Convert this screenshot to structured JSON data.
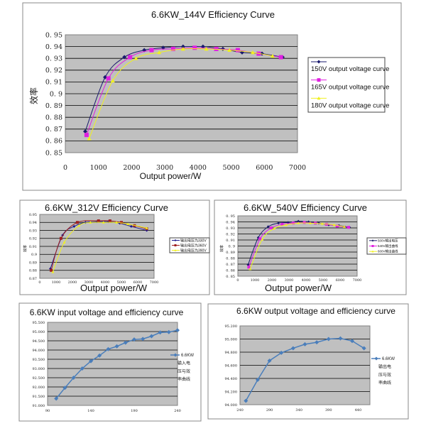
{
  "chart_data": [
    {
      "type": "line",
      "title": "6.6KW_144V Efficiency Curve",
      "xlabel": "Output power/W",
      "ylabel": "效率",
      "xlim": [
        0,
        7000
      ],
      "ylim": [
        0.85,
        0.95
      ],
      "xticks": [
        "0",
        "1000",
        "2000",
        "3000",
        "4000",
        "5000",
        "6000",
        "7000"
      ],
      "yticks": [
        "0. 85",
        "0. 86",
        "0. 87",
        "0. 88",
        "0. 89",
        "0. 9",
        "0. 91",
        "0. 92",
        "0. 93",
        "0. 94",
        "0. 95"
      ],
      "grid": true,
      "legend": "right",
      "series": [
        {
          "name": "150V output voltage curve",
          "color": "#1a1a6e",
          "marker": "diamond",
          "x": [
            600,
            1200,
            1780,
            2380,
            2950,
            3550,
            4150,
            4750,
            5330,
            5930,
            6550
          ],
          "y": [
            0.868,
            0.914,
            0.931,
            0.937,
            0.939,
            0.94,
            0.94,
            0.938,
            0.935,
            0.934,
            0.931
          ]
        },
        {
          "name": "165V output voltage curve",
          "color": "#e020e0",
          "marker": "square",
          "x": [
            640,
            1300,
            1950,
            2600,
            3250,
            3900,
            4550,
            5200,
            5830,
            6500
          ],
          "y": [
            0.865,
            0.913,
            0.931,
            0.937,
            0.938,
            0.939,
            0.938,
            0.937,
            0.934,
            0.931
          ]
        },
        {
          "name": "180V output voltage curve",
          "color": "#f0f020",
          "marker": "triangle",
          "x": [
            720,
            1430,
            2130,
            2830,
            3550,
            4250,
            4950,
            5650,
            6250
          ],
          "y": [
            0.862,
            0.911,
            0.93,
            0.935,
            0.938,
            0.938,
            0.937,
            0.935,
            0.932
          ]
        }
      ]
    },
    {
      "type": "line",
      "title": "6.6KW_312V Efficiency Curve",
      "xlabel": "Output power/W",
      "ylabel": "效率",
      "xlim": [
        0,
        7000
      ],
      "ylim": [
        0.87,
        0.95
      ],
      "xticks": [
        "0",
        "1000",
        "2000",
        "3000",
        "4000",
        "5000",
        "6000",
        "7000"
      ],
      "yticks": [
        "0.87",
        "0.88",
        "0.89",
        "0.9",
        "0.91",
        "0.92",
        "0.93",
        "0.94",
        "0.95"
      ],
      "grid": true,
      "legend": "right",
      "series": [
        {
          "name": "输出电压为330V",
          "color": "#1a1a8e",
          "marker": "diamond",
          "x": [
            650,
            1400,
            2100,
            2800,
            3500,
            4200,
            4900,
            5600,
            6550
          ],
          "y": [
            0.882,
            0.924,
            0.935,
            0.94,
            0.941,
            0.941,
            0.939,
            0.935,
            0.93
          ]
        },
        {
          "name": "输出电压为360V",
          "color": "#a02020",
          "marker": "square",
          "x": [
            700,
            1300,
            2300,
            3600,
            4300,
            5000,
            5800,
            6550
          ],
          "y": [
            0.88,
            0.92,
            0.94,
            0.942,
            0.942,
            0.94,
            0.936,
            0.932
          ]
        },
        {
          "name": "输出电压为390V",
          "color": "#f0f020",
          "marker": "triangle",
          "x": [
            800,
            1500,
            2400,
            3100,
            3900,
            4700,
            5400,
            6550
          ],
          "y": [
            0.878,
            0.915,
            0.936,
            0.94,
            0.94,
            0.94,
            0.938,
            0.933
          ]
        }
      ]
    },
    {
      "type": "line",
      "title": "6.6KW_540V Efficiency Curve",
      "xlabel": "Output power/W",
      "ylabel": "效率",
      "xlim": [
        0,
        7000
      ],
      "ylim": [
        0.85,
        0.95
      ],
      "xticks": [
        "0",
        "1000",
        "2000",
        "3000",
        "4000",
        "5000",
        "6000",
        "7000"
      ],
      "yticks": [
        "0. 85",
        "0. 86",
        "0. 87",
        "0. 88",
        "0. 89",
        "0. 9",
        "0. 91",
        "0. 92",
        "0. 93",
        "0. 94",
        "0. 95"
      ],
      "grid": true,
      "legend": "right",
      "series": [
        {
          "name": "500V输出电压",
          "color": "#1a1a6e",
          "marker": "diamond",
          "x": [
            600,
            1200,
            1780,
            2380,
            2950,
            3550,
            4150,
            4750,
            5330,
            5930,
            6550
          ],
          "y": [
            0.869,
            0.914,
            0.932,
            0.938,
            0.939,
            0.941,
            0.94,
            0.938,
            0.935,
            0.934,
            0.931
          ]
        },
        {
          "name": "540V输出曲线",
          "color": "#e020e0",
          "marker": "square",
          "x": [
            640,
            1300,
            1950,
            2600,
            3250,
            3900,
            4550,
            5200,
            5830,
            6500
          ],
          "y": [
            0.865,
            0.912,
            0.93,
            0.936,
            0.938,
            0.939,
            0.938,
            0.936,
            0.933,
            0.931
          ]
        },
        {
          "name": "600V输出曲线",
          "color": "#f0f020",
          "marker": "triangle",
          "x": [
            720,
            1430,
            2130,
            2830,
            3550,
            4250,
            4950,
            5650,
            6250
          ],
          "y": [
            0.862,
            0.911,
            0.929,
            0.935,
            0.938,
            0.938,
            0.937,
            0.935,
            0.932
          ]
        }
      ]
    },
    {
      "type": "line",
      "title": "6.6KW input voltage and efficiency curve",
      "xlabel": "",
      "ylabel": "",
      "xlim": [
        90,
        240
      ],
      "ylim": [
        91,
        95.5
      ],
      "xticks": [
        "90",
        "140",
        "190",
        "240"
      ],
      "yticks": [
        "91.000",
        "91.500",
        "92.000",
        "92.500",
        "93.000",
        "93.500",
        "94.000",
        "94.500",
        "95.000",
        "95.500"
      ],
      "grid": true,
      "legend": "right",
      "series": [
        {
          "name": "6.6KW 输入电压与效率曲线",
          "color": "#4a7ebb",
          "marker": "diamond",
          "x": [
            100,
            110,
            120,
            130,
            140,
            150,
            160,
            170,
            180,
            190,
            200,
            210,
            220,
            230,
            240
          ],
          "y": [
            91.37,
            91.95,
            92.5,
            93.0,
            93.4,
            93.7,
            94.05,
            94.2,
            94.4,
            94.57,
            94.6,
            94.75,
            94.95,
            94.97,
            95.07
          ]
        }
      ]
    },
    {
      "type": "line",
      "title": "6.6KW output voltage and efficiency curve",
      "xlabel": "",
      "ylabel": "",
      "xlim": [
        240,
        460
      ],
      "ylim": [
        94.0,
        95.2
      ],
      "xticks": [
        "240",
        "290",
        "340",
        "390",
        "440"
      ],
      "yticks": [
        "94.000",
        "94.200",
        "94.400",
        "94.600",
        "94.800",
        "95.000",
        "95.200"
      ],
      "grid": true,
      "legend": "right",
      "series": [
        {
          "name": "6.6KW 输出电压与效率曲线",
          "color": "#4a7ebb",
          "marker": "diamond",
          "x": [
            250,
            270,
            290,
            310,
            330,
            350,
            370,
            390,
            410,
            430,
            450
          ],
          "y": [
            94.06,
            94.38,
            94.67,
            94.79,
            94.86,
            94.92,
            94.95,
            95.0,
            95.01,
            94.97,
            94.86
          ]
        }
      ]
    }
  ]
}
